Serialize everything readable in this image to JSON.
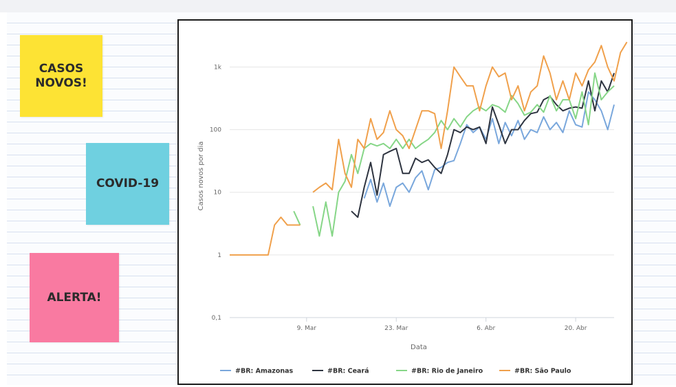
{
  "notes": [
    {
      "text": "CASOS\nNOVOS!",
      "color": "#fde334"
    },
    {
      "text": "COVID-19",
      "color": "#6fd0e0"
    },
    {
      "text": "ALERTA!",
      "color": "#f97aa1"
    }
  ],
  "chart_data": {
    "type": "line",
    "xlabel": "Data",
    "ylabel": "Casos novos por dia",
    "yscale": "log",
    "ylim": [
      0.1,
      3000
    ],
    "yticks": [
      0.1,
      1,
      10,
      100,
      1000
    ],
    "ytick_labels": [
      "0,1",
      "1",
      "10",
      "100",
      "1k"
    ],
    "xlim": [
      "2020-02-26",
      "2020-04-26"
    ],
    "xticks": [
      "2020-03-09",
      "2020-03-23",
      "2020-04-06",
      "2020-04-20"
    ],
    "xtick_labels": [
      "9. Mar",
      "23. Mar",
      "6. Abr",
      "20. Abr"
    ],
    "grid": true,
    "legend_position": "bottom",
    "series": [
      {
        "name": "#BR: Amazonas",
        "color": "#79a7dc",
        "points": [
          [
            "2020-03-17",
            null
          ],
          [
            "2020-03-18",
            8
          ],
          [
            "2020-03-19",
            16
          ],
          [
            "2020-03-20",
            7
          ],
          [
            "2020-03-21",
            14
          ],
          [
            "2020-03-22",
            6
          ],
          [
            "2020-03-23",
            12
          ],
          [
            "2020-03-24",
            14
          ],
          [
            "2020-03-25",
            10
          ],
          [
            "2020-03-26",
            17
          ],
          [
            "2020-03-27",
            22
          ],
          [
            "2020-03-28",
            11
          ],
          [
            "2020-03-29",
            23
          ],
          [
            "2020-03-30",
            25
          ],
          [
            "2020-03-31",
            30
          ],
          [
            "2020-04-01",
            32
          ],
          [
            "2020-04-02",
            60
          ],
          [
            "2020-04-03",
            120
          ],
          [
            "2020-04-04",
            90
          ],
          [
            "2020-04-05",
            110
          ],
          [
            "2020-04-06",
            70
          ],
          [
            "2020-04-07",
            150
          ],
          [
            "2020-04-08",
            60
          ],
          [
            "2020-04-09",
            130
          ],
          [
            "2020-04-10",
            80
          ],
          [
            "2020-04-11",
            140
          ],
          [
            "2020-04-12",
            70
          ],
          [
            "2020-04-13",
            100
          ],
          [
            "2020-04-14",
            90
          ],
          [
            "2020-04-15",
            160
          ],
          [
            "2020-04-16",
            100
          ],
          [
            "2020-04-17",
            130
          ],
          [
            "2020-04-18",
            90
          ],
          [
            "2020-04-19",
            200
          ],
          [
            "2020-04-20",
            120
          ],
          [
            "2020-04-21",
            110
          ],
          [
            "2020-04-22",
            400
          ],
          [
            "2020-04-23",
            300
          ],
          [
            "2020-04-24",
            200
          ],
          [
            "2020-04-25",
            100
          ],
          [
            "2020-04-26",
            250
          ]
        ]
      },
      {
        "name": "#BR: Ceará",
        "color": "#2e3440",
        "points": [
          [
            "2020-03-16",
            5
          ],
          [
            "2020-03-17",
            4
          ],
          [
            "2020-03-18",
            12
          ],
          [
            "2020-03-19",
            30
          ],
          [
            "2020-03-20",
            9
          ],
          [
            "2020-03-21",
            40
          ],
          [
            "2020-03-22",
            45
          ],
          [
            "2020-03-23",
            50
          ],
          [
            "2020-03-24",
            20
          ],
          [
            "2020-03-25",
            20
          ],
          [
            "2020-03-26",
            35
          ],
          [
            "2020-03-27",
            30
          ],
          [
            "2020-03-28",
            33
          ],
          [
            "2020-03-29",
            25
          ],
          [
            "2020-03-30",
            20
          ],
          [
            "2020-03-31",
            40
          ],
          [
            "2020-04-01",
            100
          ],
          [
            "2020-04-02",
            90
          ],
          [
            "2020-04-03",
            110
          ],
          [
            "2020-04-04",
            100
          ],
          [
            "2020-04-05",
            110
          ],
          [
            "2020-04-06",
            60
          ],
          [
            "2020-04-07",
            230
          ],
          [
            "2020-04-08",
            120
          ],
          [
            "2020-04-09",
            60
          ],
          [
            "2020-04-10",
            100
          ],
          [
            "2020-04-11",
            100
          ],
          [
            "2020-04-12",
            140
          ],
          [
            "2020-04-13",
            180
          ],
          [
            "2020-04-14",
            190
          ],
          [
            "2020-04-15",
            300
          ],
          [
            "2020-04-16",
            340
          ],
          [
            "2020-04-17",
            250
          ],
          [
            "2020-04-18",
            200
          ],
          [
            "2020-04-19",
            220
          ],
          [
            "2020-04-20",
            230
          ],
          [
            "2020-04-21",
            220
          ],
          [
            "2020-04-22",
            600
          ],
          [
            "2020-04-23",
            200
          ],
          [
            "2020-04-24",
            600
          ],
          [
            "2020-04-25",
            400
          ],
          [
            "2020-04-26",
            800
          ]
        ]
      },
      {
        "name": "#BR: Rio de Janeiro",
        "color": "#86d687",
        "points": [
          [
            "2020-03-07",
            5
          ],
          [
            "2020-03-08",
            3
          ],
          [
            "2020-03-09",
            null
          ],
          [
            "2020-03-10",
            6
          ],
          [
            "2020-03-11",
            2
          ],
          [
            "2020-03-12",
            7
          ],
          [
            "2020-03-13",
            2
          ],
          [
            "2020-03-14",
            10
          ],
          [
            "2020-03-15",
            15
          ],
          [
            "2020-03-16",
            40
          ],
          [
            "2020-03-17",
            20
          ],
          [
            "2020-03-18",
            50
          ],
          [
            "2020-03-19",
            60
          ],
          [
            "2020-03-20",
            55
          ],
          [
            "2020-03-21",
            60
          ],
          [
            "2020-03-22",
            50
          ],
          [
            "2020-03-23",
            70
          ],
          [
            "2020-03-24",
            50
          ],
          [
            "2020-03-25",
            70
          ],
          [
            "2020-03-26",
            50
          ],
          [
            "2020-03-27",
            60
          ],
          [
            "2020-03-28",
            70
          ],
          [
            "2020-03-29",
            90
          ],
          [
            "2020-03-30",
            140
          ],
          [
            "2020-03-31",
            100
          ],
          [
            "2020-04-01",
            150
          ],
          [
            "2020-04-02",
            110
          ],
          [
            "2020-04-03",
            160
          ],
          [
            "2020-04-04",
            200
          ],
          [
            "2020-04-05",
            230
          ],
          [
            "2020-04-06",
            200
          ],
          [
            "2020-04-07",
            250
          ],
          [
            "2020-04-08",
            230
          ],
          [
            "2020-04-09",
            190
          ],
          [
            "2020-04-10",
            350
          ],
          [
            "2020-04-11",
            260
          ],
          [
            "2020-04-12",
            170
          ],
          [
            "2020-04-13",
            190
          ],
          [
            "2020-04-14",
            250
          ],
          [
            "2020-04-15",
            190
          ],
          [
            "2020-04-16",
            350
          ],
          [
            "2020-04-17",
            200
          ],
          [
            "2020-04-18",
            300
          ],
          [
            "2020-04-19",
            300
          ],
          [
            "2020-04-20",
            150
          ],
          [
            "2020-04-21",
            400
          ],
          [
            "2020-04-22",
            120
          ],
          [
            "2020-04-23",
            800
          ],
          [
            "2020-04-24",
            300
          ],
          [
            "2020-04-25",
            400
          ],
          [
            "2020-04-26",
            500
          ]
        ]
      },
      {
        "name": "#BR: São Paulo",
        "color": "#f0a04b",
        "points": [
          [
            "2020-02-26",
            1
          ],
          [
            "2020-03-03",
            1
          ],
          [
            "2020-03-04",
            3
          ],
          [
            "2020-03-05",
            4
          ],
          [
            "2020-03-06",
            3
          ],
          [
            "2020-03-07",
            3
          ],
          [
            "2020-03-08",
            3
          ],
          [
            "2020-03-09",
            null
          ],
          [
            "2020-03-10",
            10
          ],
          [
            "2020-03-11",
            12
          ],
          [
            "2020-03-12",
            14
          ],
          [
            "2020-03-13",
            11
          ],
          [
            "2020-03-14",
            70
          ],
          [
            "2020-03-15",
            20
          ],
          [
            "2020-03-16",
            12
          ],
          [
            "2020-03-17",
            70
          ],
          [
            "2020-03-18",
            50
          ],
          [
            "2020-03-19",
            150
          ],
          [
            "2020-03-20",
            70
          ],
          [
            "2020-03-21",
            90
          ],
          [
            "2020-03-22",
            200
          ],
          [
            "2020-03-23",
            100
          ],
          [
            "2020-03-24",
            80
          ],
          [
            "2020-03-25",
            50
          ],
          [
            "2020-03-26",
            100
          ],
          [
            "2020-03-27",
            200
          ],
          [
            "2020-03-28",
            200
          ],
          [
            "2020-03-29",
            180
          ],
          [
            "2020-03-30",
            50
          ],
          [
            "2020-03-31",
            200
          ],
          [
            "2020-04-01",
            1000
          ],
          [
            "2020-04-02",
            700
          ],
          [
            "2020-04-03",
            500
          ],
          [
            "2020-04-04",
            500
          ],
          [
            "2020-04-05",
            200
          ],
          [
            "2020-04-06",
            500
          ],
          [
            "2020-04-07",
            1000
          ],
          [
            "2020-04-08",
            700
          ],
          [
            "2020-04-09",
            800
          ],
          [
            "2020-04-10",
            300
          ],
          [
            "2020-04-11",
            500
          ],
          [
            "2020-04-12",
            200
          ],
          [
            "2020-04-13",
            400
          ],
          [
            "2020-04-14",
            500
          ],
          [
            "2020-04-15",
            1500
          ],
          [
            "2020-04-16",
            800
          ],
          [
            "2020-04-17",
            300
          ],
          [
            "2020-04-18",
            600
          ],
          [
            "2020-04-19",
            300
          ],
          [
            "2020-04-20",
            800
          ],
          [
            "2020-04-21",
            500
          ],
          [
            "2020-04-22",
            900
          ],
          [
            "2020-04-23",
            1200
          ],
          [
            "2020-04-24",
            2200
          ],
          [
            "2020-04-25",
            1000
          ],
          [
            "2020-04-26",
            600
          ],
          [
            "2020-04-27",
            1700
          ],
          [
            "2020-04-28",
            2500
          ]
        ]
      }
    ]
  }
}
